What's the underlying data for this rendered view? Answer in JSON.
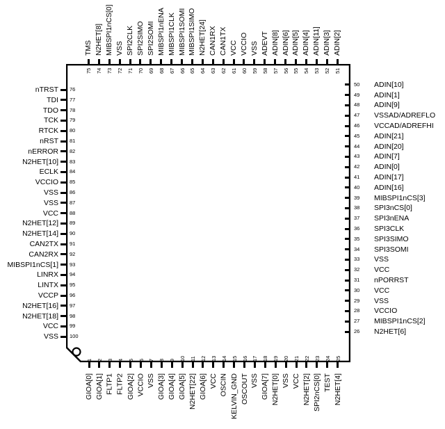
{
  "pins": [
    {
      "n": "1",
      "name": "GIOA[0]"
    },
    {
      "n": "2",
      "name": "GIOA[1]"
    },
    {
      "n": "3",
      "name": "FLTP1"
    },
    {
      "n": "4",
      "name": "FLTP2"
    },
    {
      "n": "5",
      "name": "GIOA[2]"
    },
    {
      "n": "6",
      "name": "VCCIO"
    },
    {
      "n": "7",
      "name": "VSS"
    },
    {
      "n": "8",
      "name": "GIOA[3]"
    },
    {
      "n": "9",
      "name": "GIOA[4]"
    },
    {
      "n": "10",
      "name": "GIOA[5]"
    },
    {
      "n": "11",
      "name": "N2HET[22]"
    },
    {
      "n": "12",
      "name": "GIOA[6]"
    },
    {
      "n": "13",
      "name": "VCC"
    },
    {
      "n": "14",
      "name": "OSCIN"
    },
    {
      "n": "15",
      "name": "KELVIN_GND"
    },
    {
      "n": "16",
      "name": "OSCOUT"
    },
    {
      "n": "17",
      "name": "VSS"
    },
    {
      "n": "18",
      "name": "GIOA[7]"
    },
    {
      "n": "19",
      "name": "N2HET[0]"
    },
    {
      "n": "20",
      "name": "VSS"
    },
    {
      "n": "21",
      "name": "VCC"
    },
    {
      "n": "22",
      "name": "N2HET[2]"
    },
    {
      "n": "23",
      "name": "SPI2nCS[0]"
    },
    {
      "n": "24",
      "name": "TEST"
    },
    {
      "n": "25",
      "name": "N2HET[4]"
    },
    {
      "n": "26",
      "name": "N2HET[6]"
    },
    {
      "n": "27",
      "name": "MIBSPI1nCS[2]"
    },
    {
      "n": "28",
      "name": "VCCIO"
    },
    {
      "n": "29",
      "name": "VSS"
    },
    {
      "n": "30",
      "name": "VCC"
    },
    {
      "n": "31",
      "name": "nPORRST"
    },
    {
      "n": "32",
      "name": "VCC"
    },
    {
      "n": "33",
      "name": "VSS"
    },
    {
      "n": "34",
      "name": "SPI3SOMI"
    },
    {
      "n": "35",
      "name": "SPI3SIMO"
    },
    {
      "n": "36",
      "name": "SPI3CLK"
    },
    {
      "n": "37",
      "name": "SPI3nENA"
    },
    {
      "n": "38",
      "name": "SPI3nCS[0]"
    },
    {
      "n": "39",
      "name": "MIBSPI1nCS[3]"
    },
    {
      "n": "40",
      "name": "ADIN[16]"
    },
    {
      "n": "41",
      "name": "ADIN[17]"
    },
    {
      "n": "42",
      "name": "ADIN[0]"
    },
    {
      "n": "43",
      "name": "ADIN[7]"
    },
    {
      "n": "44",
      "name": "ADIN[20]"
    },
    {
      "n": "45",
      "name": "ADIN[21]"
    },
    {
      "n": "46",
      "name": "VCCAD/ADREFHI"
    },
    {
      "n": "47",
      "name": "VSSAD/ADREFLO"
    },
    {
      "n": "48",
      "name": "ADIN[9]"
    },
    {
      "n": "49",
      "name": "ADIN[1]"
    },
    {
      "n": "50",
      "name": "ADIN[10]"
    },
    {
      "n": "51",
      "name": "ADIN[2]"
    },
    {
      "n": "52",
      "name": "ADIN[3]"
    },
    {
      "n": "53",
      "name": "ADIN[11]"
    },
    {
      "n": "54",
      "name": "ADIN[4]"
    },
    {
      "n": "55",
      "name": "ADIN[5]"
    },
    {
      "n": "56",
      "name": "ADIN[6]"
    },
    {
      "n": "57",
      "name": "ADIN[8]"
    },
    {
      "n": "58",
      "name": "ADEVT"
    },
    {
      "n": "59",
      "name": "VSS"
    },
    {
      "n": "60",
      "name": "VCCIO"
    },
    {
      "n": "61",
      "name": "VCC"
    },
    {
      "n": "62",
      "name": "CAN1TX"
    },
    {
      "n": "63",
      "name": "CAN1RX"
    },
    {
      "n": "64",
      "name": "N2HET[24]"
    },
    {
      "n": "65",
      "name": "MIBSPI1SIMO"
    },
    {
      "n": "66",
      "name": "MIBSPI1SOMI"
    },
    {
      "n": "67",
      "name": "MIBSPI1CLK"
    },
    {
      "n": "68",
      "name": "MIBSPI1nENA"
    },
    {
      "n": "69",
      "name": "SPI2SOMI"
    },
    {
      "n": "70",
      "name": "SPI2SIMO"
    },
    {
      "n": "71",
      "name": "SPI2CLK"
    },
    {
      "n": "72",
      "name": "VSS"
    },
    {
      "n": "73",
      "name": "MIBSPI1nCS[0]"
    },
    {
      "n": "74",
      "name": "N2HET[8]"
    },
    {
      "n": "75",
      "name": "TMS"
    },
    {
      "n": "76",
      "name": "nTRST"
    },
    {
      "n": "77",
      "name": "TDI"
    },
    {
      "n": "78",
      "name": "TDO"
    },
    {
      "n": "79",
      "name": "TCK"
    },
    {
      "n": "80",
      "name": "RTCK"
    },
    {
      "n": "81",
      "name": "nRST"
    },
    {
      "n": "82",
      "name": "nERROR"
    },
    {
      "n": "83",
      "name": "N2HET[10]"
    },
    {
      "n": "84",
      "name": "ECLK"
    },
    {
      "n": "85",
      "name": "VCCIO"
    },
    {
      "n": "86",
      "name": "VSS"
    },
    {
      "n": "87",
      "name": "VSS"
    },
    {
      "n": "88",
      "name": "VCC"
    },
    {
      "n": "89",
      "name": "N2HET[12]"
    },
    {
      "n": "90",
      "name": "N2HET[14]"
    },
    {
      "n": "91",
      "name": "CAN2TX"
    },
    {
      "n": "92",
      "name": "CAN2RX"
    },
    {
      "n": "93",
      "name": "MIBSPI1nCS[1]"
    },
    {
      "n": "94",
      "name": "LINRX"
    },
    {
      "n": "95",
      "name": "LINTX"
    },
    {
      "n": "96",
      "name": "VCCP"
    },
    {
      "n": "97",
      "name": "N2HET[16]"
    },
    {
      "n": "98",
      "name": "N2HET[18]"
    },
    {
      "n": "99",
      "name": "VCC"
    },
    {
      "n": "100",
      "name": "VSS"
    }
  ]
}
